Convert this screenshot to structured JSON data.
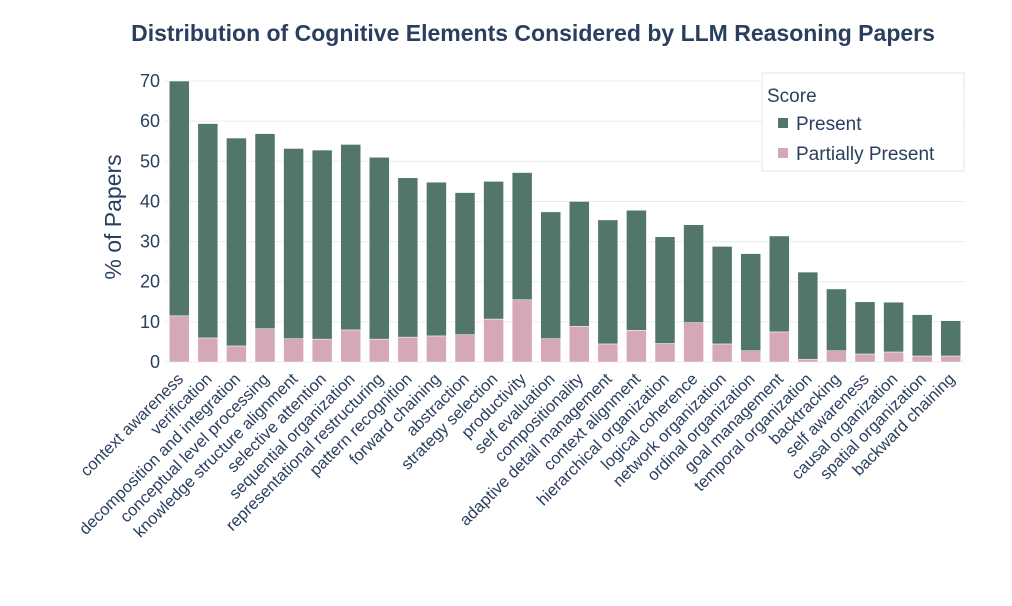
{
  "chart_data": {
    "type": "bar",
    "stacked": true,
    "title": "Distribution of Cognitive Elements Considered by LLM Reasoning Papers",
    "xlabel": "",
    "ylabel": "% of Papers",
    "ylim": [
      0,
      72
    ],
    "yticks": [
      "0",
      "10",
      "20",
      "30",
      "40",
      "50",
      "60",
      "70"
    ],
    "grid": true,
    "legend_title": "Score",
    "legend_position": "top-right",
    "categories": [
      "context awareness",
      "verification",
      "decomposition and integration",
      "conceptual level processing",
      "knowledge structure alignment",
      "selective attention",
      "sequential organization",
      "representational restructuring",
      "pattern recognition",
      "forward chaining",
      "abstraction",
      "strategy selection",
      "productivity",
      "self evaluation",
      "compositionality",
      "adaptive detail management",
      "context alignment",
      "hierarchical organization",
      "logical coherence",
      "network organization",
      "ordinal organization",
      "goal management",
      "temporal organization",
      "backtracking",
      "self awareness",
      "causal organization",
      "spatial organization",
      "backward chaining"
    ],
    "series": [
      {
        "name": "Partially Present",
        "color": "#d4a8b4",
        "values": [
          11.5,
          6.0,
          4.0,
          8.3,
          5.8,
          5.7,
          8.0,
          5.7,
          6.2,
          6.5,
          6.8,
          10.7,
          15.5,
          5.8,
          8.9,
          4.5,
          7.9,
          4.6,
          9.8,
          4.5,
          2.8,
          7.5,
          0.7,
          2.8,
          2.0,
          2.5,
          1.5,
          1.5
        ]
      },
      {
        "name": "Present",
        "color": "#52776a",
        "values": [
          58.5,
          53.4,
          51.8,
          48.6,
          47.4,
          47.1,
          46.2,
          45.3,
          39.7,
          38.3,
          35.4,
          34.3,
          31.7,
          31.6,
          31.1,
          30.9,
          29.9,
          26.6,
          24.4,
          24.3,
          24.2,
          23.9,
          21.7,
          15.4,
          13.0,
          12.4,
          10.3,
          8.8
        ]
      }
    ]
  }
}
